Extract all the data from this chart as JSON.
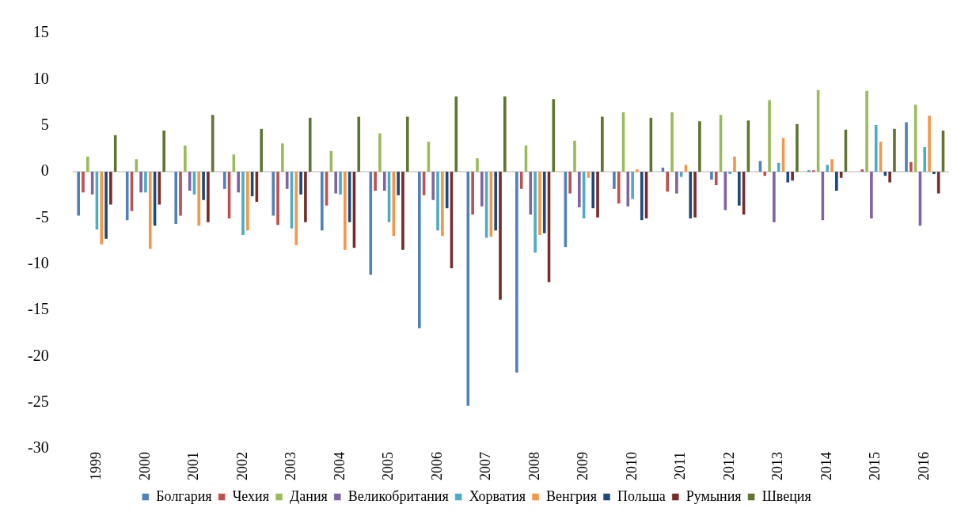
{
  "chart_data": {
    "type": "bar",
    "categories": [
      "1999",
      "2000",
      "2001",
      "2002",
      "2003",
      "2004",
      "2005",
      "2006",
      "2007",
      "2008",
      "2009",
      "2010",
      "2011",
      "2012",
      "2013",
      "2014",
      "2015",
      "2016"
    ],
    "series": [
      {
        "name": "Болгария",
        "color": "#4f81bd",
        "values": [
          -4.8,
          -5.3,
          -5.7,
          -1.9,
          -4.8,
          -6.4,
          -11.2,
          -17.0,
          -25.4,
          -21.8,
          -8.2,
          -1.9,
          0.5,
          -0.9,
          1.2,
          0.2,
          0,
          5.4
        ]
      },
      {
        "name": "Чехия",
        "color": "#c0504d",
        "values": [
          -2.3,
          -4.3,
          -4.8,
          -5.1,
          -5.8,
          -3.7,
          -2.1,
          -2.6,
          -4.7,
          -1.9,
          -2.4,
          -3.5,
          -2.2,
          -1.5,
          -0.5,
          0.2,
          0.3,
          1.1
        ]
      },
      {
        "name": "Дания",
        "color": "#9bbb59",
        "values": [
          1.7,
          1.4,
          2.9,
          1.9,
          3.1,
          2.3,
          4.2,
          3.3,
          1.5,
          2.9,
          3.4,
          6.5,
          6.5,
          6.2,
          7.8,
          8.9,
          8.8,
          7.3
        ]
      },
      {
        "name": "Великобритания",
        "color": "#8064a2",
        "values": [
          -2.5,
          -2.3,
          -2.1,
          -2.3,
          -1.9,
          -2.4,
          -2.1,
          -3.1,
          -3.8,
          -4.7,
          -3.9,
          -3.8,
          -2.4,
          -4.2,
          -5.5,
          -5.3,
          -5.1,
          -5.9
        ]
      },
      {
        "name": "Хорватия",
        "color": "#4bacc6",
        "values": [
          -6.3,
          -2.3,
          -2.5,
          -6.9,
          -6.2,
          -2.5,
          -5.5,
          -6.4,
          -7.2,
          -8.8,
          -5.1,
          -3.0,
          -0.6,
          -0.3,
          1.0,
          0.8,
          5.1,
          2.7
        ]
      },
      {
        "name": "Венгрия",
        "color": "#f79646",
        "values": [
          -7.9,
          -8.4,
          -5.9,
          -6.4,
          -8.0,
          -8.5,
          -7.0,
          -7.0,
          -7.1,
          -6.9,
          -0.7,
          0.3,
          0.8,
          1.7,
          3.7,
          1.4,
          3.3,
          6.1
        ]
      },
      {
        "name": "Польша",
        "color": "#1f497d",
        "values": [
          -7.3,
          -5.9,
          -3.1,
          -2.7,
          -2.5,
          -5.5,
          -2.6,
          -4.0,
          -6.4,
          -6.7,
          -4.0,
          -5.3,
          -5.1,
          -3.7,
          -1.2,
          -2.1,
          -0.5,
          -0.3
        ]
      },
      {
        "name": "Румыния",
        "color": "#772c2a",
        "values": [
          -3.6,
          -3.6,
          -5.5,
          -3.3,
          -5.5,
          -8.3,
          -8.5,
          -10.5,
          -13.9,
          -12.0,
          -5.0,
          -5.1,
          -5.0,
          -4.7,
          -1.0,
          -0.7,
          -1.2,
          -2.4
        ]
      },
      {
        "name": "Швеция",
        "color": "#5f7530",
        "values": [
          4.0,
          4.5,
          6.2,
          4.7,
          5.9,
          6.0,
          6.0,
          8.2,
          8.2,
          7.9,
          6.0,
          5.9,
          5.5,
          5.6,
          5.2,
          4.6,
          4.7,
          4.5
        ]
      }
    ],
    "ylim": [
      -30,
      15
    ],
    "yticks": [
      -30,
      -25,
      -20,
      -15,
      -10,
      -5,
      0,
      5,
      10,
      15
    ],
    "grid": false,
    "legend": "bottom",
    "ref_lines": [
      {
        "axis": "y",
        "value": 0,
        "color": "#d9d9d9"
      }
    ]
  }
}
